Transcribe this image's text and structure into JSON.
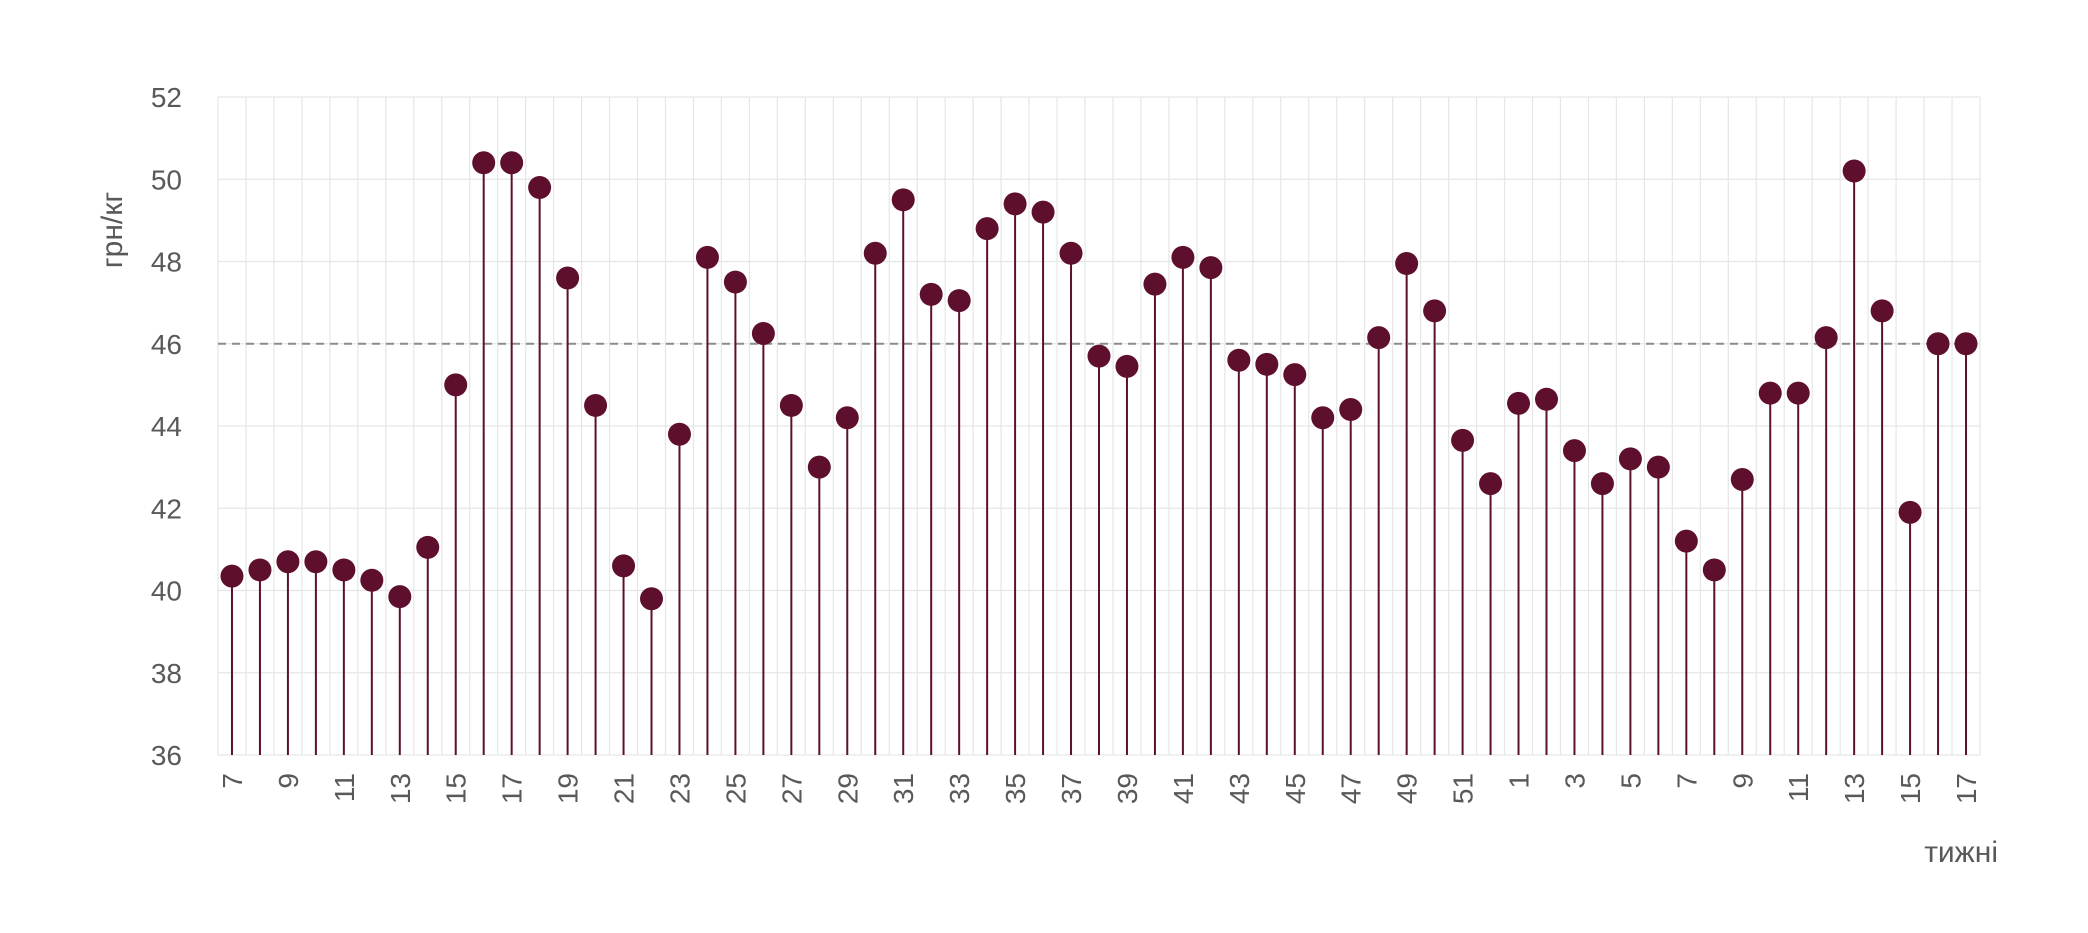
{
  "chart_data": {
    "type": "lollipop",
    "title": "",
    "xlabel": "тижні",
    "ylabel": "грн/кг",
    "ylim": [
      36,
      52
    ],
    "yticks": [
      36,
      38,
      40,
      42,
      44,
      46,
      48,
      50,
      52
    ],
    "grid": true,
    "reference_line": {
      "y": 46,
      "style": "dashed"
    },
    "categories": [
      "7",
      "8",
      "9",
      "10",
      "11",
      "12",
      "13",
      "14",
      "15",
      "16",
      "17",
      "18",
      "19",
      "20",
      "21",
      "22",
      "23",
      "24",
      "25",
      "26",
      "27",
      "28",
      "29",
      "30",
      "31",
      "32",
      "33",
      "34",
      "35",
      "36",
      "37",
      "38",
      "39",
      "40",
      "41",
      "42",
      "43",
      "44",
      "45",
      "46",
      "47",
      "48",
      "49",
      "50",
      "51",
      "52",
      "1",
      "2",
      "3",
      "4",
      "5",
      "6",
      "7",
      "8",
      "9",
      "10",
      "11",
      "12",
      "13",
      "14",
      "15",
      "16",
      "17"
    ],
    "tick_labels_every": 2,
    "values": [
      40.35,
      40.5,
      40.7,
      40.7,
      40.5,
      40.25,
      39.85,
      41.05,
      45.0,
      50.4,
      50.4,
      49.8,
      47.6,
      44.5,
      40.6,
      39.8,
      43.8,
      48.1,
      47.5,
      46.25,
      44.5,
      43.0,
      44.2,
      48.2,
      49.5,
      47.2,
      47.05,
      48.8,
      49.4,
      49.2,
      48.2,
      45.7,
      45.45,
      47.45,
      48.1,
      47.85,
      45.6,
      45.5,
      45.25,
      44.2,
      44.4,
      46.15,
      47.95,
      46.8,
      43.65,
      42.6,
      44.55,
      44.65,
      43.4,
      42.6,
      43.2,
      43.0,
      41.2,
      40.5,
      42.7,
      44.8,
      44.8,
      46.15,
      50.2,
      46.8,
      41.9,
      46.0,
      46.0
    ],
    "colors": {
      "series": "#5f0f2e",
      "grid": "#e6e6e6",
      "reference": "#8c8c8c",
      "text": "#595959"
    }
  }
}
